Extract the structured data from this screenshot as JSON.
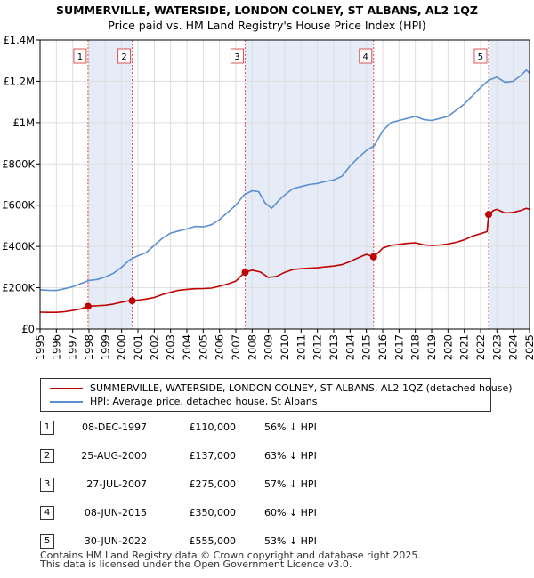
{
  "title": "SUMMERVILLE, WATERSIDE, LONDON COLNEY, ST ALBANS, AL2 1QZ",
  "subtitle": "Price paid vs. HM Land Registry's House Price Index (HPI)",
  "colors": {
    "hpi": "#5b8fd1",
    "property": "#c00000",
    "shade": "#e6ecf7",
    "grid": "#dddddd",
    "marker": "#e05050"
  },
  "legend": {
    "property": "SUMMERVILLE, WATERSIDE, LONDON COLNEY, ST ALBANS, AL2 1QZ (detached house)",
    "hpi": "HPI: Average price, detached house, St Albans"
  },
  "sales": [
    {
      "num": "1",
      "date": "08-DEC-1997",
      "price": "£110,000",
      "hpi": "56% ↓ HPI"
    },
    {
      "num": "2",
      "date": "25-AUG-2000",
      "price": "£137,000",
      "hpi": "63% ↓ HPI"
    },
    {
      "num": "3",
      "date": "27-JUL-2007",
      "price": "£275,000",
      "hpi": "57% ↓ HPI"
    },
    {
      "num": "4",
      "date": "08-JUN-2015",
      "price": "£350,000",
      "hpi": "60% ↓ HPI"
    },
    {
      "num": "5",
      "date": "30-JUN-2022",
      "price": "£555,000",
      "hpi": "53% ↓ HPI"
    }
  ],
  "footer": {
    "line1": "Contains HM Land Registry data © Crown copyright and database right 2025.",
    "line2": "This data is licensed under the Open Government Licence v3.0."
  },
  "chart_data": {
    "type": "line",
    "xlim": [
      1995,
      2025
    ],
    "ylim": [
      0,
      1400000
    ],
    "x_ticks": [
      "1995",
      "1996",
      "1997",
      "1998",
      "1999",
      "2000",
      "2001",
      "2002",
      "2003",
      "2004",
      "2005",
      "2006",
      "2007",
      "2008",
      "2009",
      "2010",
      "2011",
      "2012",
      "2013",
      "2014",
      "2015",
      "2016",
      "2017",
      "2018",
      "2019",
      "2020",
      "2021",
      "2022",
      "2023",
      "2024",
      "2025"
    ],
    "y_ticks": [
      {
        "value": 0,
        "label": "£0"
      },
      {
        "value": 200000,
        "label": "£200K"
      },
      {
        "value": 400000,
        "label": "£400K"
      },
      {
        "value": 600000,
        "label": "£600K"
      },
      {
        "value": 800000,
        "label": "£800K"
      },
      {
        "value": 1000000,
        "label": "£1M"
      },
      {
        "value": 1200000,
        "label": "£1.2M"
      },
      {
        "value": 1400000,
        "label": "£1.4M"
      }
    ],
    "grid": true,
    "series": [
      {
        "name": "HPI: Average price, detached house, St Albans",
        "points": [
          [
            1995.0,
            190000
          ],
          [
            1995.5,
            188000
          ],
          [
            1996.0,
            187000
          ],
          [
            1996.5,
            195000
          ],
          [
            1997.0,
            205000
          ],
          [
            1997.5,
            220000
          ],
          [
            1998.0,
            235000
          ],
          [
            1998.5,
            240000
          ],
          [
            1999.0,
            252000
          ],
          [
            1999.5,
            270000
          ],
          [
            2000.0,
            300000
          ],
          [
            2000.5,
            335000
          ],
          [
            2001.0,
            355000
          ],
          [
            2001.5,
            370000
          ],
          [
            2002.0,
            405000
          ],
          [
            2002.5,
            440000
          ],
          [
            2003.0,
            465000
          ],
          [
            2003.5,
            475000
          ],
          [
            2004.0,
            485000
          ],
          [
            2004.5,
            497000
          ],
          [
            2005.0,
            495000
          ],
          [
            2005.5,
            505000
          ],
          [
            2006.0,
            530000
          ],
          [
            2006.5,
            565000
          ],
          [
            2007.0,
            600000
          ],
          [
            2007.5,
            650000
          ],
          [
            2008.0,
            670000
          ],
          [
            2008.4,
            665000
          ],
          [
            2008.8,
            610000
          ],
          [
            2009.2,
            585000
          ],
          [
            2009.6,
            620000
          ],
          [
            2010.0,
            650000
          ],
          [
            2010.5,
            680000
          ],
          [
            2011.0,
            690000
          ],
          [
            2011.5,
            700000
          ],
          [
            2012.0,
            705000
          ],
          [
            2012.5,
            715000
          ],
          [
            2013.0,
            722000
          ],
          [
            2013.5,
            740000
          ],
          [
            2014.0,
            790000
          ],
          [
            2014.5,
            830000
          ],
          [
            2015.0,
            865000
          ],
          [
            2015.5,
            890000
          ],
          [
            2016.0,
            960000
          ],
          [
            2016.5,
            1000000
          ],
          [
            2017.0,
            1010000
          ],
          [
            2017.5,
            1020000
          ],
          [
            2018.0,
            1030000
          ],
          [
            2018.5,
            1015000
          ],
          [
            2019.0,
            1010000
          ],
          [
            2019.5,
            1020000
          ],
          [
            2020.0,
            1030000
          ],
          [
            2020.5,
            1060000
          ],
          [
            2021.0,
            1090000
          ],
          [
            2021.5,
            1130000
          ],
          [
            2022.0,
            1170000
          ],
          [
            2022.5,
            1205000
          ],
          [
            2023.0,
            1220000
          ],
          [
            2023.5,
            1195000
          ],
          [
            2024.0,
            1200000
          ],
          [
            2024.5,
            1230000
          ],
          [
            2024.8,
            1255000
          ],
          [
            2025.0,
            1240000
          ]
        ]
      },
      {
        "name": "SUMMERVILLE, WATERSIDE, LONDON COLNEY, ST ALBANS, AL2 1QZ (detached house)",
        "points": [
          [
            1995.0,
            82000
          ],
          [
            1995.5,
            81000
          ],
          [
            1996.0,
            81000
          ],
          [
            1996.5,
            84000
          ],
          [
            1997.0,
            90000
          ],
          [
            1997.5,
            98000
          ],
          [
            1997.94,
            110000
          ],
          [
            1998.5,
            113000
          ],
          [
            1999.0,
            115000
          ],
          [
            1999.5,
            121000
          ],
          [
            2000.0,
            130000
          ],
          [
            2000.4,
            136000
          ],
          [
            2000.65,
            137000
          ],
          [
            2001.0,
            140000
          ],
          [
            2001.5,
            145000
          ],
          [
            2002.0,
            153000
          ],
          [
            2002.5,
            167000
          ],
          [
            2003.0,
            178000
          ],
          [
            2003.5,
            188000
          ],
          [
            2004.0,
            192000
          ],
          [
            2004.5,
            195000
          ],
          [
            2005.0,
            196000
          ],
          [
            2005.5,
            198000
          ],
          [
            2006.0,
            207000
          ],
          [
            2006.5,
            218000
          ],
          [
            2007.0,
            232000
          ],
          [
            2007.55,
            275000
          ],
          [
            2008.0,
            285000
          ],
          [
            2008.5,
            276000
          ],
          [
            2009.0,
            250000
          ],
          [
            2009.5,
            255000
          ],
          [
            2010.0,
            275000
          ],
          [
            2010.5,
            288000
          ],
          [
            2011.0,
            292000
          ],
          [
            2011.5,
            295000
          ],
          [
            2012.0,
            297000
          ],
          [
            2012.5,
            301000
          ],
          [
            2013.0,
            305000
          ],
          [
            2013.5,
            312000
          ],
          [
            2014.0,
            327000
          ],
          [
            2014.5,
            345000
          ],
          [
            2015.0,
            362000
          ],
          [
            2015.44,
            350000
          ],
          [
            2015.8,
            375000
          ],
          [
            2016.0,
            392000
          ],
          [
            2016.5,
            405000
          ],
          [
            2017.0,
            410000
          ],
          [
            2017.5,
            415000
          ],
          [
            2018.0,
            418000
          ],
          [
            2018.5,
            408000
          ],
          [
            2019.0,
            405000
          ],
          [
            2019.5,
            407000
          ],
          [
            2020.0,
            412000
          ],
          [
            2020.5,
            420000
          ],
          [
            2021.0,
            432000
          ],
          [
            2021.5,
            450000
          ],
          [
            2022.0,
            462000
          ],
          [
            2022.4,
            472000
          ],
          [
            2022.49,
            555000
          ],
          [
            2022.8,
            575000
          ],
          [
            2023.0,
            580000
          ],
          [
            2023.5,
            562000
          ],
          [
            2024.0,
            565000
          ],
          [
            2024.5,
            575000
          ],
          [
            2024.8,
            585000
          ],
          [
            2025.0,
            580000
          ]
        ]
      }
    ],
    "sale_markers": [
      {
        "label": "1",
        "x": 1997.94,
        "y": 110000
      },
      {
        "label": "2",
        "x": 2000.65,
        "y": 137000
      },
      {
        "label": "3",
        "x": 2007.57,
        "y": 275000
      },
      {
        "label": "4",
        "x": 2015.44,
        "y": 350000
      },
      {
        "label": "5",
        "x": 2022.49,
        "y": 555000
      }
    ]
  }
}
